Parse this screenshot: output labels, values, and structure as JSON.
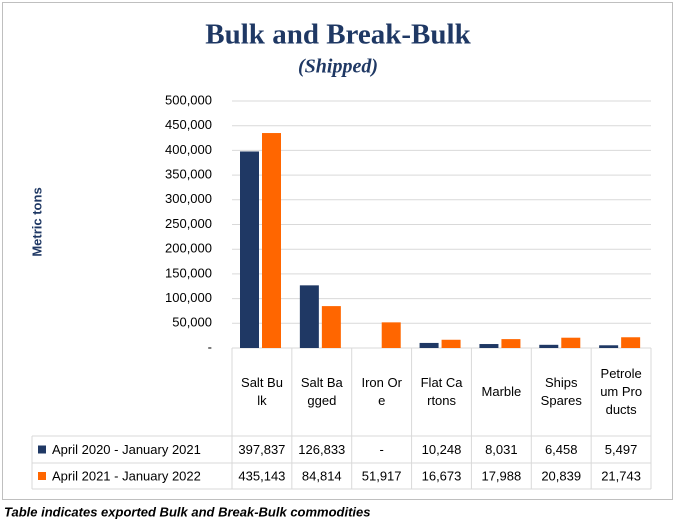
{
  "chart_data": {
    "type": "bar",
    "title": "Bulk and Break-Bulk",
    "subtitle": "(Shipped)",
    "y_label": "Metric tons",
    "caption": "Table indicates exported Bulk and Break-Bulk commodities",
    "categories": [
      "Salt Bulk",
      "Salt Bagged",
      "Iron Ore",
      "Flat Cartons",
      "Marble",
      "Ships Spares",
      "Petroleum Products"
    ],
    "series": [
      {
        "name": "April 2020 - January 2021",
        "color": "#1f3864",
        "values": [
          397837,
          126833,
          null,
          10248,
          8031,
          6458,
          5497
        ],
        "value_labels": [
          "397,837",
          "126,833",
          "-",
          "10,248",
          "8,031",
          "6,458",
          "5,497"
        ]
      },
      {
        "name": "April 2021 - January 2022",
        "color": "#ff6600",
        "values": [
          435143,
          84814,
          51917,
          16673,
          17988,
          20839,
          21743
        ],
        "value_labels": [
          "435,143",
          "84,814",
          "51,917",
          "16,673",
          "17,988",
          "20,839",
          "21,743"
        ]
      }
    ],
    "ylim": [
      0,
      500000
    ],
    "yticks": [
      {
        "value": 0,
        "label": "-"
      },
      {
        "value": 50000,
        "label": "50,000"
      },
      {
        "value": 100000,
        "label": "100,000"
      },
      {
        "value": 150000,
        "label": "150,000"
      },
      {
        "value": 200000,
        "label": "200,000"
      },
      {
        "value": 250000,
        "label": "250,000"
      },
      {
        "value": 300000,
        "label": "300,000"
      },
      {
        "value": 350000,
        "label": "350,000"
      },
      {
        "value": 400000,
        "label": "400,000"
      },
      {
        "value": 450000,
        "label": "450,000"
      },
      {
        "value": 500000,
        "label": "500,000"
      }
    ],
    "grid": true
  }
}
